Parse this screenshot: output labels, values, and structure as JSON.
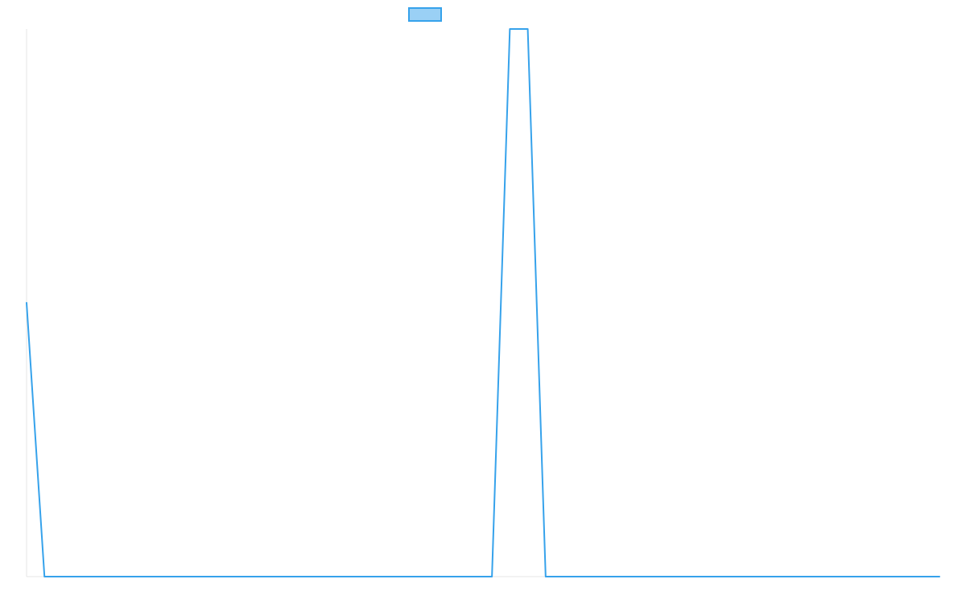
{
  "chart_data": {
    "type": "line",
    "title": "",
    "xlabel": "",
    "ylabel": "",
    "grid": false,
    "legend": {
      "placement": "top-center",
      "entries": [
        {
          "name": "",
          "color": "#36A2EB",
          "fill": "#9AD0F5"
        }
      ]
    },
    "x": [
      0,
      1,
      2,
      3,
      4,
      5,
      6,
      7,
      8,
      9,
      10,
      11,
      12,
      13,
      14,
      15,
      16,
      17,
      18,
      19,
      20,
      21,
      22,
      23,
      24,
      25,
      26,
      27,
      28,
      29,
      30,
      31,
      32,
      33,
      34,
      35,
      36,
      37,
      38,
      39,
      40,
      41,
      42,
      43,
      44,
      45,
      46,
      47,
      48,
      49,
      50,
      51
    ],
    "xlim": [
      0,
      51
    ],
    "ylim": [
      0,
      1
    ],
    "series": [
      {
        "name": "",
        "color": "#36A2EB",
        "values": [
          0.5,
          0,
          0,
          0,
          0,
          0,
          0,
          0,
          0,
          0,
          0,
          0,
          0,
          0,
          0,
          0,
          0,
          0,
          0,
          0,
          0,
          0,
          0,
          0,
          0,
          0,
          0,
          1,
          1,
          0,
          0,
          0,
          0,
          0,
          0,
          0,
          0,
          0,
          0,
          0,
          0,
          0,
          0,
          0,
          0,
          0,
          0,
          0,
          0,
          0,
          0,
          0
        ]
      }
    ]
  }
}
